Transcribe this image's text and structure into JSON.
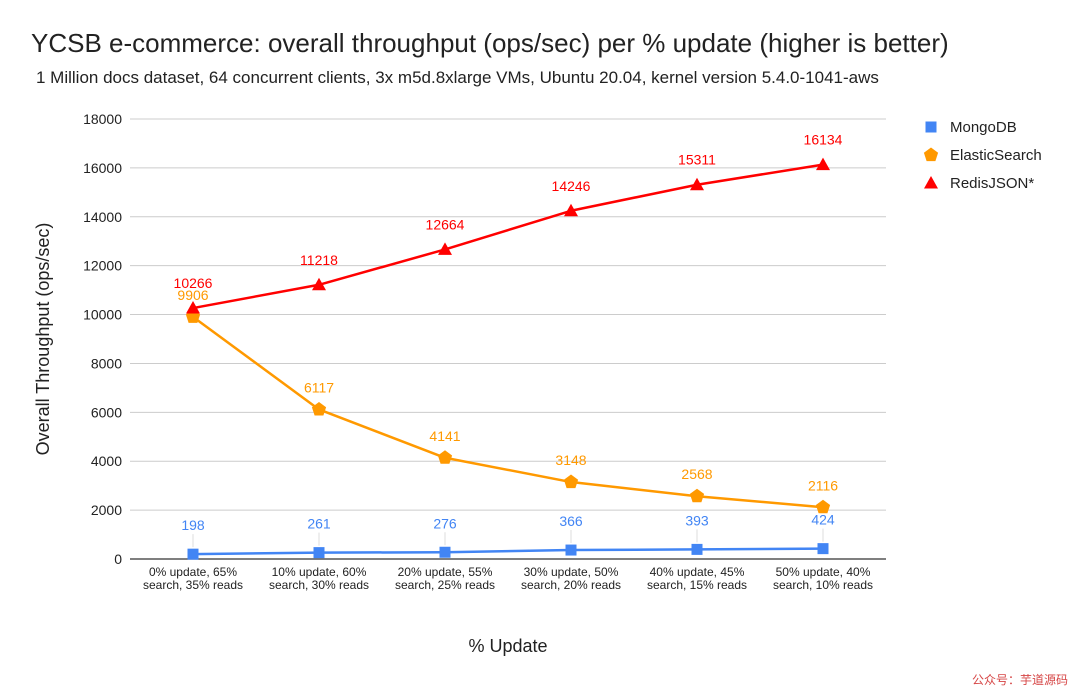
{
  "chart_data": {
    "type": "line",
    "title": "YCSB e-commerce: overall throughput (ops/sec) per % update (higher is better)",
    "subtitle": "1 Million docs dataset, 64 concurrent clients, 3x m5d.8xlarge VMs, Ubuntu 20.04, kernel version 5.4.0-1041-aws",
    "xlabel": "% Update",
    "ylabel": "Overall Throughput (ops/sec)",
    "ylim": [
      0,
      18000
    ],
    "yticks": [
      0,
      2000,
      4000,
      6000,
      8000,
      10000,
      12000,
      14000,
      16000,
      18000
    ],
    "grid": true,
    "legend_position": "top-right",
    "categories": [
      [
        "0% update, 65%",
        "search, 35% reads"
      ],
      [
        "10% update, 60%",
        "search, 30% reads"
      ],
      [
        "20% update, 55%",
        "search, 25% reads"
      ],
      [
        "30% update, 50%",
        "search, 20% reads"
      ],
      [
        "40% update, 45%",
        "search, 15% reads"
      ],
      [
        "50% update, 40%",
        "search, 10% reads"
      ]
    ],
    "series": [
      {
        "name": "MongoDB",
        "marker": "square",
        "color": "#4285f4",
        "values": [
          198,
          261,
          276,
          366,
          393,
          424
        ]
      },
      {
        "name": "ElasticSearch",
        "marker": "pentagon",
        "color": "#ff9900",
        "values": [
          9906,
          6117,
          4141,
          3148,
          2568,
          2116
        ]
      },
      {
        "name": "RedisJSON*",
        "marker": "triangle",
        "color": "#ff0000",
        "values": [
          10266,
          11218,
          12664,
          14246,
          15311,
          16134
        ]
      }
    ]
  },
  "watermark": "公众号：芋道源码"
}
